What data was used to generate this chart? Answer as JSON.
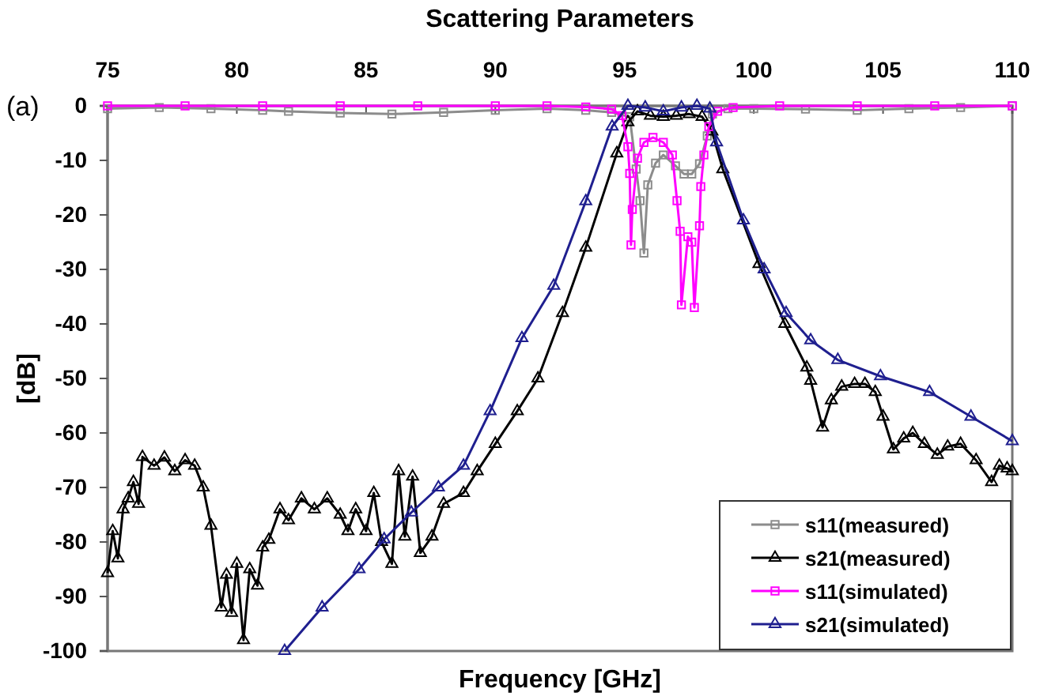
{
  "chart_data": {
    "type": "line",
    "title": "Scattering Parameters",
    "xlabel": "Frequency [GHz]",
    "ylabel": "[dB]",
    "annotations": [
      "(a)"
    ],
    "xlim": [
      75,
      110
    ],
    "xticks": [
      75,
      80,
      85,
      90,
      95,
      100,
      105,
      110
    ],
    "ylim": [
      -100,
      0
    ],
    "yticks": [
      -100,
      -90,
      -80,
      -70,
      -60,
      -50,
      -40,
      -30,
      -20,
      -10,
      0
    ],
    "grid": false,
    "legend": "bottom right",
    "series": [
      {
        "name": "s11(measured)",
        "color": "#8c8c8c",
        "marker": "square",
        "x": [
          75,
          77,
          79,
          81,
          82,
          84,
          86,
          88,
          90,
          92,
          93.5,
          94.5,
          95.2,
          95.45,
          95.6,
          95.75,
          95.9,
          96.2,
          96.5,
          96.97,
          97.3,
          97.6,
          97.9,
          98.2,
          98.4,
          99,
          100,
          102,
          104,
          106,
          108,
          110
        ],
        "values": [
          -0.5,
          -0.3,
          -0.5,
          -0.8,
          -1,
          -1.3,
          -1.5,
          -1.2,
          -0.8,
          -0.5,
          -0.8,
          -1.2,
          -2,
          -11.6,
          -17.4,
          -27,
          -14.5,
          -10.5,
          -9,
          -11,
          -12.5,
          -12.5,
          -10.6,
          -5.5,
          -1.5,
          -0.5,
          -0.5,
          -0.6,
          -0.8,
          -0.5,
          -0.3,
          0
        ]
      },
      {
        "name": "s21(measured)",
        "color": "#000000",
        "marker": "triangle",
        "x": [
          75,
          75.2,
          75.4,
          75.6,
          75.8,
          76,
          76.2,
          76.35,
          76.8,
          77.2,
          77.6,
          78,
          78.37,
          78.7,
          79,
          79.4,
          79.6,
          79.8,
          80,
          80.26,
          80.5,
          80.8,
          81,
          81.24,
          81.67,
          82,
          82.5,
          83,
          83.5,
          84,
          84.3,
          84.6,
          85,
          85.3,
          85.6,
          86,
          86.26,
          86.5,
          86.8,
          87.1,
          87.55,
          88,
          88.77,
          89.3,
          90,
          90.85,
          91.65,
          92.6,
          93.5,
          94.7,
          95.13,
          95.5,
          96,
          96.5,
          97,
          97.5,
          98,
          98.38,
          98.8,
          100.2,
          101.2,
          102.05,
          102.2,
          102.66,
          103,
          103.4,
          103.9,
          104.3,
          104.7,
          105,
          105.4,
          105.8,
          106.15,
          106.6,
          107.1,
          107.5,
          108,
          108.6,
          109.2,
          109.5,
          109.8,
          110
        ],
        "values": [
          -85.7,
          -78,
          -83,
          -74,
          -72,
          -69,
          -73,
          -64.4,
          -66,
          -64.5,
          -67,
          -65,
          -66,
          -70,
          -77,
          -92,
          -86,
          -93,
          -84,
          -98,
          -85,
          -88,
          -81,
          -79.6,
          -74,
          -76,
          -72,
          -74,
          -72,
          -75,
          -78,
          -74,
          -78,
          -71,
          -80,
          -84,
          -67,
          -79,
          -68,
          -82,
          -79,
          -73,
          -71,
          -67,
          -62,
          -56,
          -50,
          -38,
          -26,
          -8.7,
          -3,
          -1,
          -1.8,
          -2,
          -1.8,
          -1.5,
          -2,
          -4.7,
          -11.6,
          -29,
          -40,
          -48,
          -50.4,
          -59,
          -54,
          -51.5,
          -51,
          -51,
          -52.5,
          -57,
          -63,
          -61,
          -60,
          -62,
          -64,
          -62.5,
          -62,
          -65,
          -69,
          -66,
          -66.5,
          -67
        ]
      },
      {
        "name": "s11(simulated)",
        "color": "#ff00ff",
        "marker": "square",
        "x": [
          75,
          78,
          81,
          84,
          87,
          90,
          92,
          93.5,
          94.5,
          94.9,
          95.13,
          95.2,
          95.25,
          95.3,
          95.5,
          95.75,
          96.1,
          96.5,
          96.85,
          97.03,
          97.15,
          97.2,
          97.45,
          97.6,
          97.7,
          97.9,
          97.95,
          98.07,
          98.26,
          98.6,
          99.2,
          101,
          104,
          107,
          110
        ],
        "values": [
          0,
          0,
          0,
          0,
          0,
          0,
          0,
          -0.2,
          -0.6,
          -1.8,
          -7.5,
          -12.4,
          -25.5,
          -19,
          -9.6,
          -6.7,
          -5.8,
          -6.7,
          -9,
          -17.4,
          -23,
          -36.5,
          -24,
          -25,
          -37,
          -22,
          -14.8,
          -9,
          -3.8,
          -1,
          -0.3,
          0,
          0,
          0,
          0
        ]
      },
      {
        "name": "s21(simulated)",
        "color": "#1f1f8f",
        "marker": "triangle",
        "x": [
          81.85,
          83.3,
          84.73,
          85.7,
          86.75,
          87.8,
          88.77,
          89.8,
          91.03,
          92.26,
          93.5,
          94.52,
          95.13,
          95.8,
          96.5,
          97.2,
          97.8,
          98.3,
          98.56,
          99.6,
          100.4,
          101.25,
          102.2,
          103.25,
          104.9,
          106.8,
          108.4,
          110
        ],
        "values": [
          -100,
          -92,
          -85,
          -79.5,
          -74.6,
          -70,
          -66,
          -56,
          -42.6,
          -33,
          -17.5,
          -3.8,
          0,
          -0.3,
          -1,
          -0.3,
          0,
          -0.5,
          -6.7,
          -21,
          -30,
          -38,
          -43,
          -46.6,
          -49.6,
          -52.5,
          -57,
          -61.5
        ]
      }
    ]
  }
}
